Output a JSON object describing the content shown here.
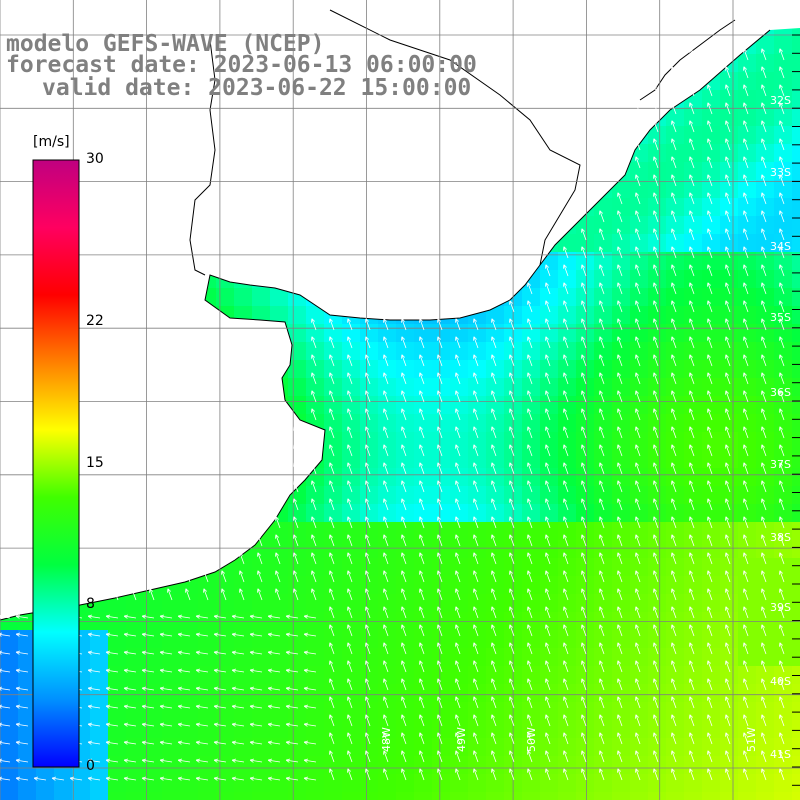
{
  "header": {
    "model_line": "modelo GEFS-WAVE (NCEP)",
    "forecast_line": "forecast date: 2023-06-13 06:00:00",
    "valid_line": "valid date: 2023-06-22 15:00:00"
  },
  "colorbar": {
    "unit": "[m/s]",
    "ticks": [
      {
        "value": 30,
        "label": "30"
      },
      {
        "value": 22,
        "label": "22"
      },
      {
        "value": 15,
        "label": "15"
      },
      {
        "value": 8,
        "label": "8"
      },
      {
        "value": 0,
        "label": "0"
      }
    ],
    "min": 0,
    "max": 30,
    "colors": [
      "#0000ff",
      "#0090ff",
      "#00ffff",
      "#00ff40",
      "#40ff00",
      "#ffff00",
      "#ff8000",
      "#ff0000",
      "#ff0060",
      "#c00080"
    ]
  },
  "latitude_labels": [
    "32S",
    "33S",
    "34S",
    "35S",
    "36S",
    "37S",
    "38S",
    "39S",
    "40S",
    "41S"
  ],
  "longitude_labels": [
    "48W",
    "49W",
    "50W",
    "51W"
  ],
  "colors": {
    "land": "#ffffff",
    "coast": "#000000",
    "grid": "#808080",
    "arrow": "#ffffff"
  }
}
